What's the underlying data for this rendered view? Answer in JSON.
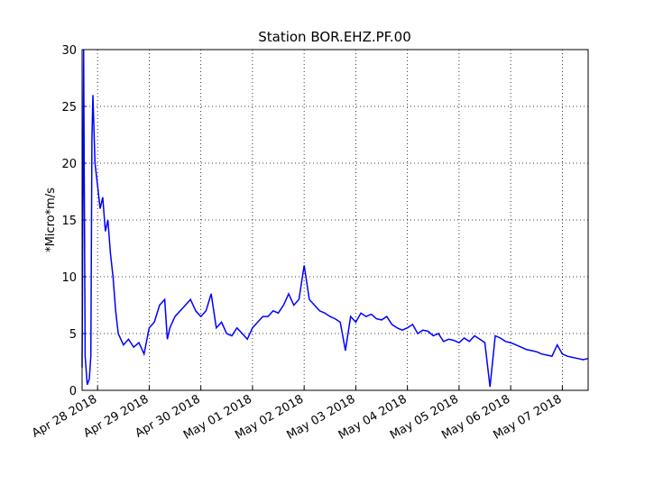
{
  "chart_data": {
    "type": "line",
    "title": "Station BOR.EHZ.PF.00",
    "y_label": "*Micro*m/s",
    "color": "#0000ff",
    "grid": true,
    "x": [
      -0.3,
      -0.27,
      -0.24,
      -0.2,
      -0.16,
      -0.13,
      -0.11,
      -0.09,
      -0.05,
      0.0,
      0.05,
      0.1,
      0.15,
      0.2,
      0.25,
      0.3,
      0.35,
      0.4,
      0.5,
      0.6,
      0.7,
      0.8,
      0.9,
      1.0,
      1.1,
      1.2,
      1.3,
      1.35,
      1.4,
      1.5,
      1.6,
      1.7,
      1.8,
      1.9,
      2.0,
      2.1,
      2.2,
      2.3,
      2.4,
      2.5,
      2.6,
      2.7,
      2.8,
      2.9,
      3.0,
      3.1,
      3.2,
      3.3,
      3.4,
      3.5,
      3.6,
      3.7,
      3.8,
      3.9,
      4.0,
      4.1,
      4.2,
      4.3,
      4.4,
      4.5,
      4.6,
      4.7,
      4.8,
      4.9,
      5.0,
      5.1,
      5.2,
      5.3,
      5.4,
      5.5,
      5.6,
      5.7,
      5.8,
      5.9,
      6.0,
      6.1,
      6.2,
      6.3,
      6.4,
      6.5,
      6.6,
      6.7,
      6.8,
      6.9,
      7.0,
      7.1,
      7.2,
      7.3,
      7.4,
      7.5,
      7.6,
      7.7,
      7.8,
      7.9,
      8.0,
      8.1,
      8.2,
      8.3,
      8.4,
      8.5,
      8.6,
      8.7,
      8.8,
      8.9,
      9.0,
      9.1,
      9.2,
      9.3,
      9.4,
      9.5
    ],
    "values": [
      2,
      30,
      3,
      0.5,
      1,
      3,
      22,
      26,
      20,
      18,
      16,
      17,
      14,
      15,
      12,
      10,
      7,
      5,
      4,
      4.5,
      3.8,
      4.2,
      3.2,
      5.5,
      6,
      7.5,
      8,
      4.5,
      5.5,
      6.5,
      7,
      7.5,
      8,
      7,
      6.5,
      7,
      8.5,
      5.5,
      6,
      5,
      4.8,
      5.5,
      5,
      4.5,
      5.5,
      6,
      6.5,
      6.5,
      7,
      6.8,
      7.5,
      8.5,
      7.5,
      8,
      11,
      8,
      7.5,
      7,
      6.8,
      6.5,
      6.3,
      6,
      3.5,
      6.5,
      6,
      6.8,
      6.5,
      6.7,
      6.3,
      6.2,
      6.5,
      5.8,
      5.5,
      5.3,
      5.5,
      5.8,
      5,
      5.3,
      5.2,
      4.8,
      5,
      4.3,
      4.5,
      4.4,
      4.2,
      4.6,
      4.3,
      4.8,
      4.5,
      4.2,
      0.3,
      4.8,
      4.6,
      4.3,
      4.2,
      4,
      3.8,
      3.6,
      3.5,
      3.4,
      3.2,
      3.1,
      3.0,
      4.0,
      3.2,
      3.0,
      2.9,
      2.8,
      2.7,
      2.8
    ],
    "xlim": [
      -0.3,
      9.5
    ],
    "xticks": [
      {
        "value": 0,
        "label": "Apr 28 2018"
      },
      {
        "value": 1,
        "label": "Apr 29 2018"
      },
      {
        "value": 2,
        "label": "Apr 30 2018"
      },
      {
        "value": 3,
        "label": "May 01 2018"
      },
      {
        "value": 4,
        "label": "May 02 2018"
      },
      {
        "value": 5,
        "label": "May 03 2018"
      },
      {
        "value": 6,
        "label": "May 04 2018"
      },
      {
        "value": 7,
        "label": "May 05 2018"
      },
      {
        "value": 8,
        "label": "May 06 2018"
      },
      {
        "value": 9,
        "label": "May 07 2018"
      }
    ],
    "ylim": [
      0,
      30
    ],
    "yticks": [
      0,
      5,
      10,
      15,
      20,
      25,
      30
    ]
  }
}
